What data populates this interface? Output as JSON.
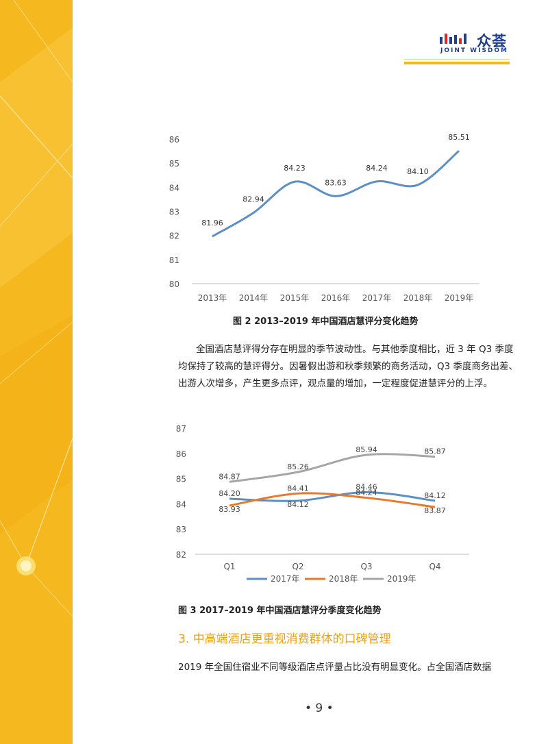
{
  "brand": {
    "name_cn": "众荟",
    "name_en": "JOINT WISDOM"
  },
  "colors": {
    "accent": "#f6b81f",
    "series_2017": "#5b8fc5",
    "series_2018": "#e8782a",
    "series_2019": "#a6a6a6",
    "annual_line": "#5b8fc5"
  },
  "chart_data": [
    {
      "type": "line",
      "x": [
        "2013年",
        "2014年",
        "2015年",
        "2016年",
        "2017年",
        "2018年",
        "2019年"
      ],
      "series": [
        {
          "values": [
            81.96,
            82.94,
            84.23,
            83.63,
            84.24,
            84.1,
            85.51
          ]
        }
      ],
      "data_labels": [
        "81.96",
        "82.94",
        "84.23",
        "83.63",
        "84.24",
        "84.10",
        "85.51"
      ],
      "yticks": [
        "80",
        "81",
        "82",
        "83",
        "84",
        "85",
        "86"
      ],
      "ylim": [
        80,
        86
      ],
      "grid": false,
      "caption": "图 2   2013–2019 年中国酒店慧评分变化趋势"
    },
    {
      "type": "line",
      "categories": [
        "Q1",
        "Q2",
        "Q3",
        "Q4"
      ],
      "series": [
        {
          "name": "2017年",
          "values": [
            84.2,
            84.12,
            84.46,
            84.12
          ],
          "labels": [
            "84.20",
            "84.12",
            "84.46",
            "84.12"
          ]
        },
        {
          "name": "2018年",
          "values": [
            83.93,
            84.41,
            84.24,
            83.87
          ],
          "labels": [
            "83.93",
            "84.41",
            "84.24",
            "83.87"
          ]
        },
        {
          "name": "2019年",
          "values": [
            84.87,
            85.26,
            85.94,
            85.87
          ],
          "labels": [
            "84.87",
            "85.26",
            "85.94",
            "85.87"
          ]
        }
      ],
      "yticks": [
        "82",
        "83",
        "84",
        "85",
        "86",
        "87"
      ],
      "ylim": [
        82,
        87
      ],
      "grid": false,
      "legend": "bottom",
      "caption": "图 3   2017–2019 年中国酒店慧评分季度变化趋势"
    }
  ],
  "captions": {
    "fig2": "图 2   2013–2019 年中国酒店慧评分变化趋势",
    "fig3": "图 3   2017–2019 年中国酒店慧评分季度变化趋势"
  },
  "paragraph1": {
    "line1": "全国酒店慧评得分存在明显的季节波动性。与其他季度相比，近 3 年 Q3 季度",
    "line2": "均保持了较高的慧评得分。因暑假出游和秋季频繁的商务活动，Q3 季度商务出差、",
    "line3": "出游人次增多，产生更多点评，观点量的增加，一定程度促进慧评分的上浮。"
  },
  "section_title": "3. 中高端酒店更重视消费群体的口碑管理",
  "paragraph2": {
    "line1": "2019 年全国住宿业不同等级酒店点评量占比没有明显变化。占全国酒店数据"
  },
  "page_number": "• 9 •"
}
